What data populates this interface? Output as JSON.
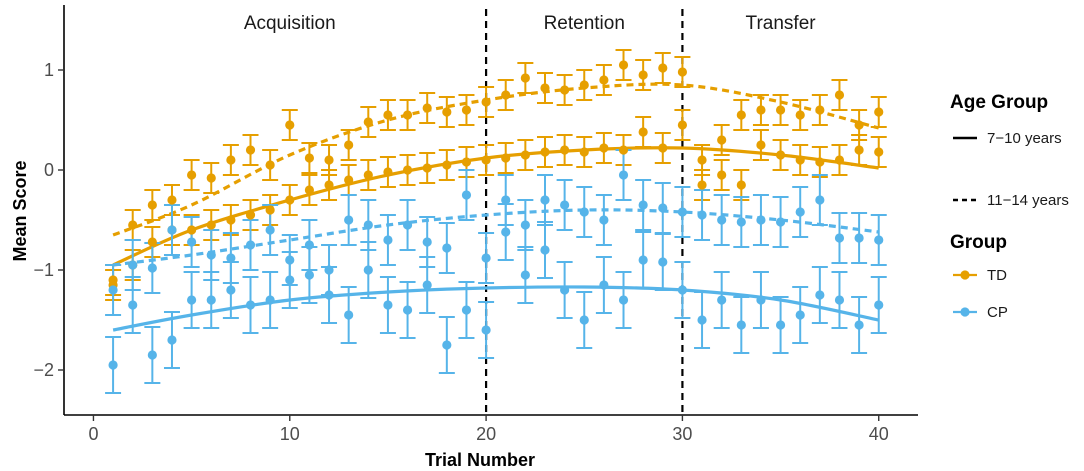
{
  "chart_data": {
    "type": "scatter",
    "title": "",
    "xlabel": "Trial Number",
    "ylabel": "Mean Score",
    "xlim": [
      -1.5,
      42
    ],
    "ylim": [
      -2.45,
      1.65
    ],
    "xticks": [
      0,
      10,
      20,
      30,
      40
    ],
    "yticks": [
      -2,
      -1,
      0,
      1
    ],
    "grid": false,
    "phase_boundaries": [
      20,
      30
    ],
    "phases": [
      {
        "label": "Acquisition",
        "x": 10
      },
      {
        "label": "Retention",
        "x": 25
      },
      {
        "label": "Transfer",
        "x": 35
      }
    ],
    "legend": {
      "position": "right",
      "age_title": "Age Group",
      "age_items": [
        {
          "label": "7−10 years",
          "linetype": "solid"
        },
        {
          "label": "11−14 years",
          "linetype": "dashed"
        }
      ],
      "group_title": "Group",
      "group_items": [
        {
          "label": "TD",
          "color": "#E69F00"
        },
        {
          "label": "CP",
          "color": "#56B4E9"
        }
      ]
    },
    "series": [
      {
        "name": "TD 7-10 years",
        "group": "TD",
        "age": "7-10 years",
        "color": "#E69F00",
        "linetype": "solid",
        "x": [
          1,
          2,
          3,
          4,
          5,
          6,
          7,
          8,
          9,
          10,
          11,
          12,
          13,
          14,
          15,
          16,
          17,
          18,
          19,
          20,
          21,
          22,
          23,
          24,
          25,
          26,
          27,
          28,
          29,
          30,
          31,
          32,
          33,
          34,
          35,
          36,
          37,
          38,
          39,
          40
        ],
        "y": [
          -1.1,
          -0.95,
          -0.72,
          -0.6,
          -0.6,
          -0.55,
          -0.5,
          -0.45,
          -0.4,
          -0.3,
          -0.2,
          -0.15,
          -0.1,
          -0.05,
          -0.02,
          0.0,
          0.02,
          0.05,
          0.08,
          0.1,
          0.12,
          0.15,
          0.18,
          0.2,
          0.18,
          0.22,
          0.2,
          0.38,
          0.22,
          0.45,
          -0.15,
          -0.05,
          -0.15,
          0.25,
          0.15,
          0.1,
          0.08,
          0.1,
          0.2,
          0.18
        ],
        "err": [
          0.15,
          0.15,
          0.15,
          0.15,
          0.15,
          0.15,
          0.15,
          0.15,
          0.15,
          0.15,
          0.15,
          0.15,
          0.15,
          0.15,
          0.15,
          0.15,
          0.15,
          0.15,
          0.15,
          0.15,
          0.15,
          0.15,
          0.15,
          0.15,
          0.15,
          0.15,
          0.15,
          0.15,
          0.15,
          0.15,
          0.15,
          0.15,
          0.15,
          0.15,
          0.15,
          0.15,
          0.15,
          0.15,
          0.15,
          0.15
        ],
        "fit_x": [
          1,
          5,
          10,
          15,
          20,
          25,
          30,
          35,
          40
        ],
        "fit_y": [
          -0.95,
          -0.6,
          -0.3,
          -0.05,
          0.12,
          0.2,
          0.22,
          0.15,
          0.02
        ]
      },
      {
        "name": "TD 11-14 years",
        "group": "TD",
        "age": "11-14 years",
        "color": "#E69F00",
        "linetype": "dashed",
        "x": [
          1,
          2,
          3,
          4,
          5,
          6,
          7,
          8,
          9,
          10,
          11,
          12,
          13,
          14,
          15,
          16,
          17,
          18,
          19,
          20,
          21,
          22,
          23,
          24,
          25,
          26,
          27,
          28,
          29,
          30,
          31,
          32,
          33,
          34,
          35,
          36,
          37,
          38,
          39,
          40
        ],
        "y": [
          -1.15,
          -0.55,
          -0.35,
          -0.3,
          -0.05,
          -0.08,
          0.1,
          0.2,
          0.05,
          0.45,
          0.12,
          0.1,
          0.25,
          0.48,
          0.55,
          0.55,
          0.62,
          0.58,
          0.6,
          0.68,
          0.75,
          0.92,
          0.82,
          0.8,
          0.85,
          0.9,
          1.05,
          0.95,
          1.02,
          0.98,
          0.1,
          0.3,
          0.55,
          0.6,
          0.6,
          0.55,
          0.6,
          0.75,
          0.45,
          0.58
        ],
        "err": [
          0.15,
          0.15,
          0.15,
          0.15,
          0.15,
          0.15,
          0.15,
          0.15,
          0.15,
          0.15,
          0.15,
          0.15,
          0.15,
          0.15,
          0.15,
          0.15,
          0.15,
          0.15,
          0.15,
          0.15,
          0.15,
          0.15,
          0.15,
          0.15,
          0.15,
          0.15,
          0.15,
          0.15,
          0.15,
          0.15,
          0.15,
          0.15,
          0.15,
          0.15,
          0.15,
          0.15,
          0.15,
          0.15,
          0.15,
          0.15
        ],
        "fit_x": [
          1,
          5,
          10,
          15,
          20,
          25,
          30,
          35,
          40
        ],
        "fit_y": [
          -0.65,
          -0.35,
          0.15,
          0.5,
          0.7,
          0.82,
          0.85,
          0.68,
          0.42
        ]
      },
      {
        "name": "CP 7-10 years",
        "group": "CP",
        "age": "7-10 years",
        "color": "#56B4E9",
        "linetype": "solid",
        "x": [
          1,
          2,
          3,
          4,
          5,
          6,
          7,
          8,
          9,
          10,
          11,
          12,
          13,
          14,
          15,
          16,
          17,
          18,
          19,
          20,
          21,
          22,
          23,
          24,
          25,
          26,
          27,
          28,
          29,
          30,
          31,
          32,
          33,
          34,
          35,
          36,
          37,
          38,
          39,
          40
        ],
        "y": [
          -1.95,
          -1.35,
          -1.85,
          -1.7,
          -1.3,
          -1.3,
          -1.2,
          -1.35,
          -1.3,
          -1.1,
          -1.05,
          -1.25,
          -1.45,
          -1.0,
          -1.35,
          -1.4,
          -1.15,
          -1.75,
          -1.4,
          -1.6,
          -0.62,
          -1.05,
          -0.8,
          -1.2,
          -1.5,
          -1.15,
          -1.3,
          -0.9,
          -0.92,
          -1.2,
          -1.5,
          -1.3,
          -1.55,
          -1.3,
          -1.55,
          -1.45,
          -1.25,
          -1.3,
          -1.55,
          -1.35
        ],
        "err": [
          0.28,
          0.28,
          0.28,
          0.28,
          0.28,
          0.28,
          0.28,
          0.28,
          0.28,
          0.28,
          0.28,
          0.28,
          0.28,
          0.28,
          0.28,
          0.28,
          0.28,
          0.28,
          0.28,
          0.28,
          0.28,
          0.28,
          0.28,
          0.28,
          0.28,
          0.28,
          0.28,
          0.28,
          0.28,
          0.28,
          0.28,
          0.28,
          0.28,
          0.28,
          0.28,
          0.28,
          0.28,
          0.28,
          0.28,
          0.28
        ],
        "fit_x": [
          1,
          5,
          10,
          15,
          20,
          25,
          30,
          35,
          40
        ],
        "fit_y": [
          -1.6,
          -1.45,
          -1.3,
          -1.22,
          -1.18,
          -1.17,
          -1.2,
          -1.3,
          -1.5
        ]
      },
      {
        "name": "CP 11-14 years",
        "group": "CP",
        "age": "11-14 years",
        "color": "#56B4E9",
        "linetype": "dashed",
        "x": [
          1,
          2,
          3,
          4,
          5,
          6,
          7,
          8,
          9,
          10,
          11,
          12,
          13,
          14,
          15,
          16,
          17,
          18,
          19,
          20,
          21,
          22,
          23,
          24,
          25,
          26,
          27,
          28,
          29,
          30,
          31,
          32,
          33,
          34,
          35,
          36,
          37,
          38,
          39,
          40
        ],
        "y": [
          -1.2,
          -0.95,
          -0.98,
          -0.6,
          -0.72,
          -0.85,
          -0.88,
          -0.75,
          -0.6,
          -0.9,
          -0.75,
          -1.0,
          -0.5,
          -0.55,
          -0.7,
          -0.55,
          -0.72,
          -0.78,
          -0.25,
          -0.88,
          -0.3,
          -0.55,
          -0.3,
          -0.35,
          -0.42,
          -0.5,
          -0.05,
          -0.35,
          -0.38,
          -0.42,
          -0.45,
          -0.5,
          -0.52,
          -0.5,
          -0.52,
          -0.42,
          -0.3,
          -0.68,
          -0.68,
          -0.7
        ],
        "err": [
          0.25,
          0.25,
          0.25,
          0.25,
          0.25,
          0.25,
          0.25,
          0.25,
          0.25,
          0.25,
          0.25,
          0.25,
          0.25,
          0.25,
          0.25,
          0.25,
          0.25,
          0.25,
          0.25,
          0.25,
          0.25,
          0.25,
          0.25,
          0.25,
          0.25,
          0.25,
          0.25,
          0.25,
          0.25,
          0.25,
          0.25,
          0.25,
          0.25,
          0.25,
          0.25,
          0.25,
          0.25,
          0.25,
          0.25,
          0.25
        ],
        "fit_x": [
          1,
          5,
          10,
          15,
          20,
          25,
          30,
          35,
          40
        ],
        "fit_y": [
          -0.95,
          -0.85,
          -0.7,
          -0.55,
          -0.45,
          -0.4,
          -0.42,
          -0.5,
          -0.62
        ]
      }
    ]
  }
}
